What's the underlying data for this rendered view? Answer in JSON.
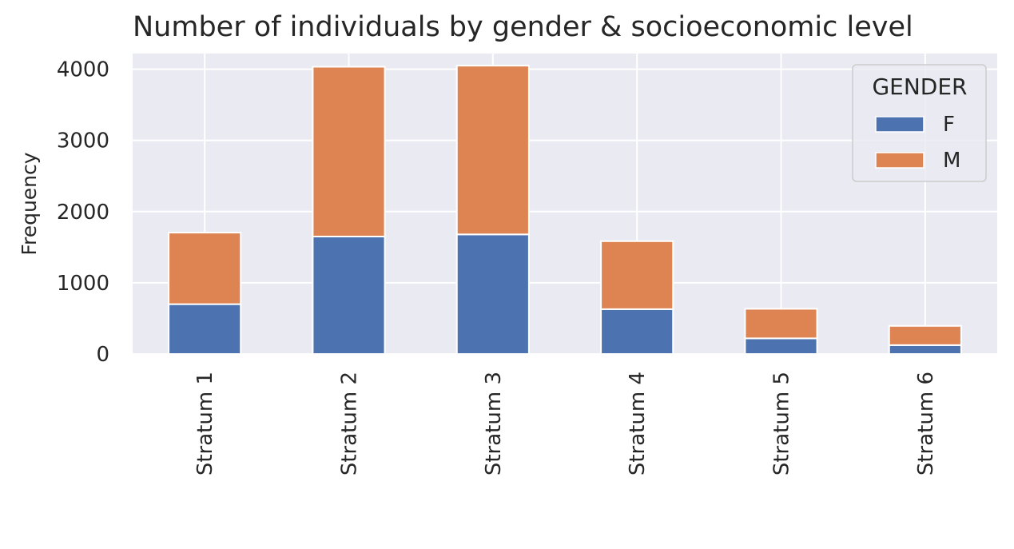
{
  "chart_data": {
    "type": "bar",
    "stacked": true,
    "title": "Number of individuals by gender & socioeconomic level",
    "xlabel": "",
    "ylabel": "Frequency",
    "categories": [
      "Stratum 1",
      "Stratum 2",
      "Stratum 3",
      "Stratum 4",
      "Stratum 5",
      "Stratum 6"
    ],
    "series": [
      {
        "name": "F",
        "values": [
          700,
          1650,
          1680,
          630,
          220,
          125
        ],
        "color": "#4c72b0"
      },
      {
        "name": "M",
        "values": [
          1005,
          2385,
          2370,
          955,
          415,
          270
        ],
        "color": "#dd8452"
      }
    ],
    "ylim": [
      0,
      4220
    ],
    "yticks": [
      0,
      1000,
      2000,
      3000,
      4000
    ],
    "grid": true,
    "legend": {
      "title": "GENDER",
      "placement": "top-right"
    },
    "background": "#eaeaf2"
  }
}
